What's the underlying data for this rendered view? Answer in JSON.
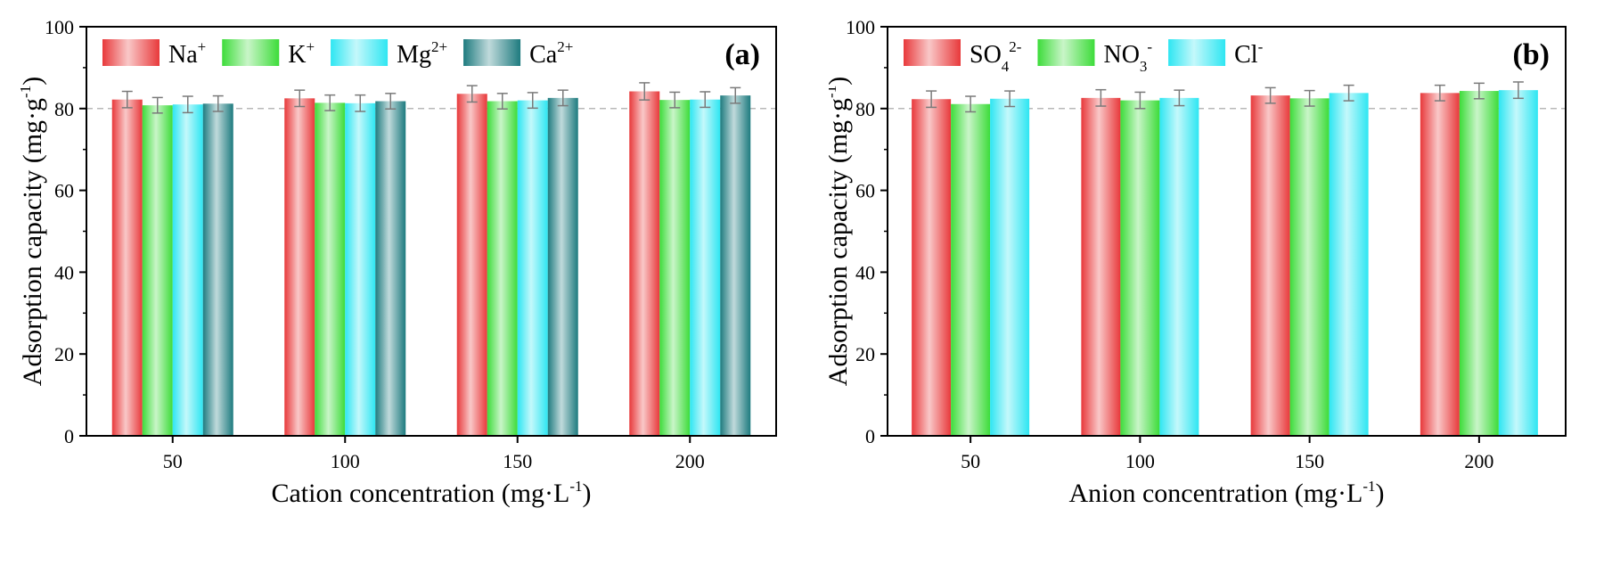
{
  "chart_data": [
    {
      "type": "bar",
      "panel_label": "(a)",
      "xlabel": "Cation concentration (mg·L",
      "xlabel_sup": "-1",
      "xlabel_end": ")",
      "ylabel": "Adsorption capacity (mg·g",
      "ylabel_sup": "-1",
      "ylabel_end": ")",
      "categories": [
        "50",
        "100",
        "150",
        "200"
      ],
      "ylim": [
        0,
        100
      ],
      "yticks": [
        "0",
        "20",
        "40",
        "60",
        "80",
        "100"
      ],
      "reference_line": 80,
      "legend_position": "top-left",
      "series": [
        {
          "name": "Na",
          "sup": "+",
          "color": "#e8393b",
          "values": [
            82.2,
            82.5,
            83.6,
            84.2
          ],
          "errors": [
            2.0,
            2.0,
            2.0,
            2.1
          ]
        },
        {
          "name": "K",
          "sup": "+",
          "color": "#3ddc3a",
          "values": [
            80.8,
            81.4,
            81.8,
            82.1
          ],
          "errors": [
            1.9,
            1.9,
            1.9,
            1.9
          ]
        },
        {
          "name": "Mg",
          "sup": "2+",
          "color": "#2ee6f2",
          "values": [
            81.0,
            81.3,
            82.0,
            82.2
          ],
          "errors": [
            2.0,
            2.0,
            1.9,
            1.9
          ]
        },
        {
          "name": "Ca",
          "sup": "2+",
          "color": "#1e7b7f",
          "values": [
            81.2,
            81.8,
            82.6,
            83.2
          ],
          "errors": [
            1.9,
            1.9,
            1.9,
            1.9
          ]
        }
      ]
    },
    {
      "type": "bar",
      "panel_label": "(b)",
      "xlabel": "Anion concentration (mg·L",
      "xlabel_sup": "-1",
      "xlabel_end": ")",
      "ylabel": "Adsorption capacity (mg·g",
      "ylabel_sup": "-1",
      "ylabel_end": ")",
      "categories": [
        "50",
        "100",
        "150",
        "200"
      ],
      "ylim": [
        0,
        100
      ],
      "yticks": [
        "0",
        "20",
        "40",
        "60",
        "80",
        "100"
      ],
      "reference_line": 80,
      "legend_position": "top-left",
      "series": [
        {
          "name": "SO",
          "sub": "4",
          "sup": "2-",
          "color": "#e8393b",
          "values": [
            82.3,
            82.6,
            83.2,
            83.8
          ],
          "errors": [
            2.0,
            2.0,
            1.9,
            1.9
          ]
        },
        {
          "name": "NO",
          "sub": "3",
          "sup": "-",
          "color": "#3ddc3a",
          "values": [
            81.1,
            82.0,
            82.5,
            84.3
          ],
          "errors": [
            1.9,
            2.0,
            1.9,
            1.9
          ]
        },
        {
          "name": "Cl",
          "sup": "-",
          "color": "#2ee6f2",
          "values": [
            82.4,
            82.6,
            83.8,
            84.5
          ],
          "errors": [
            1.9,
            1.9,
            1.9,
            2.0
          ]
        }
      ]
    }
  ]
}
